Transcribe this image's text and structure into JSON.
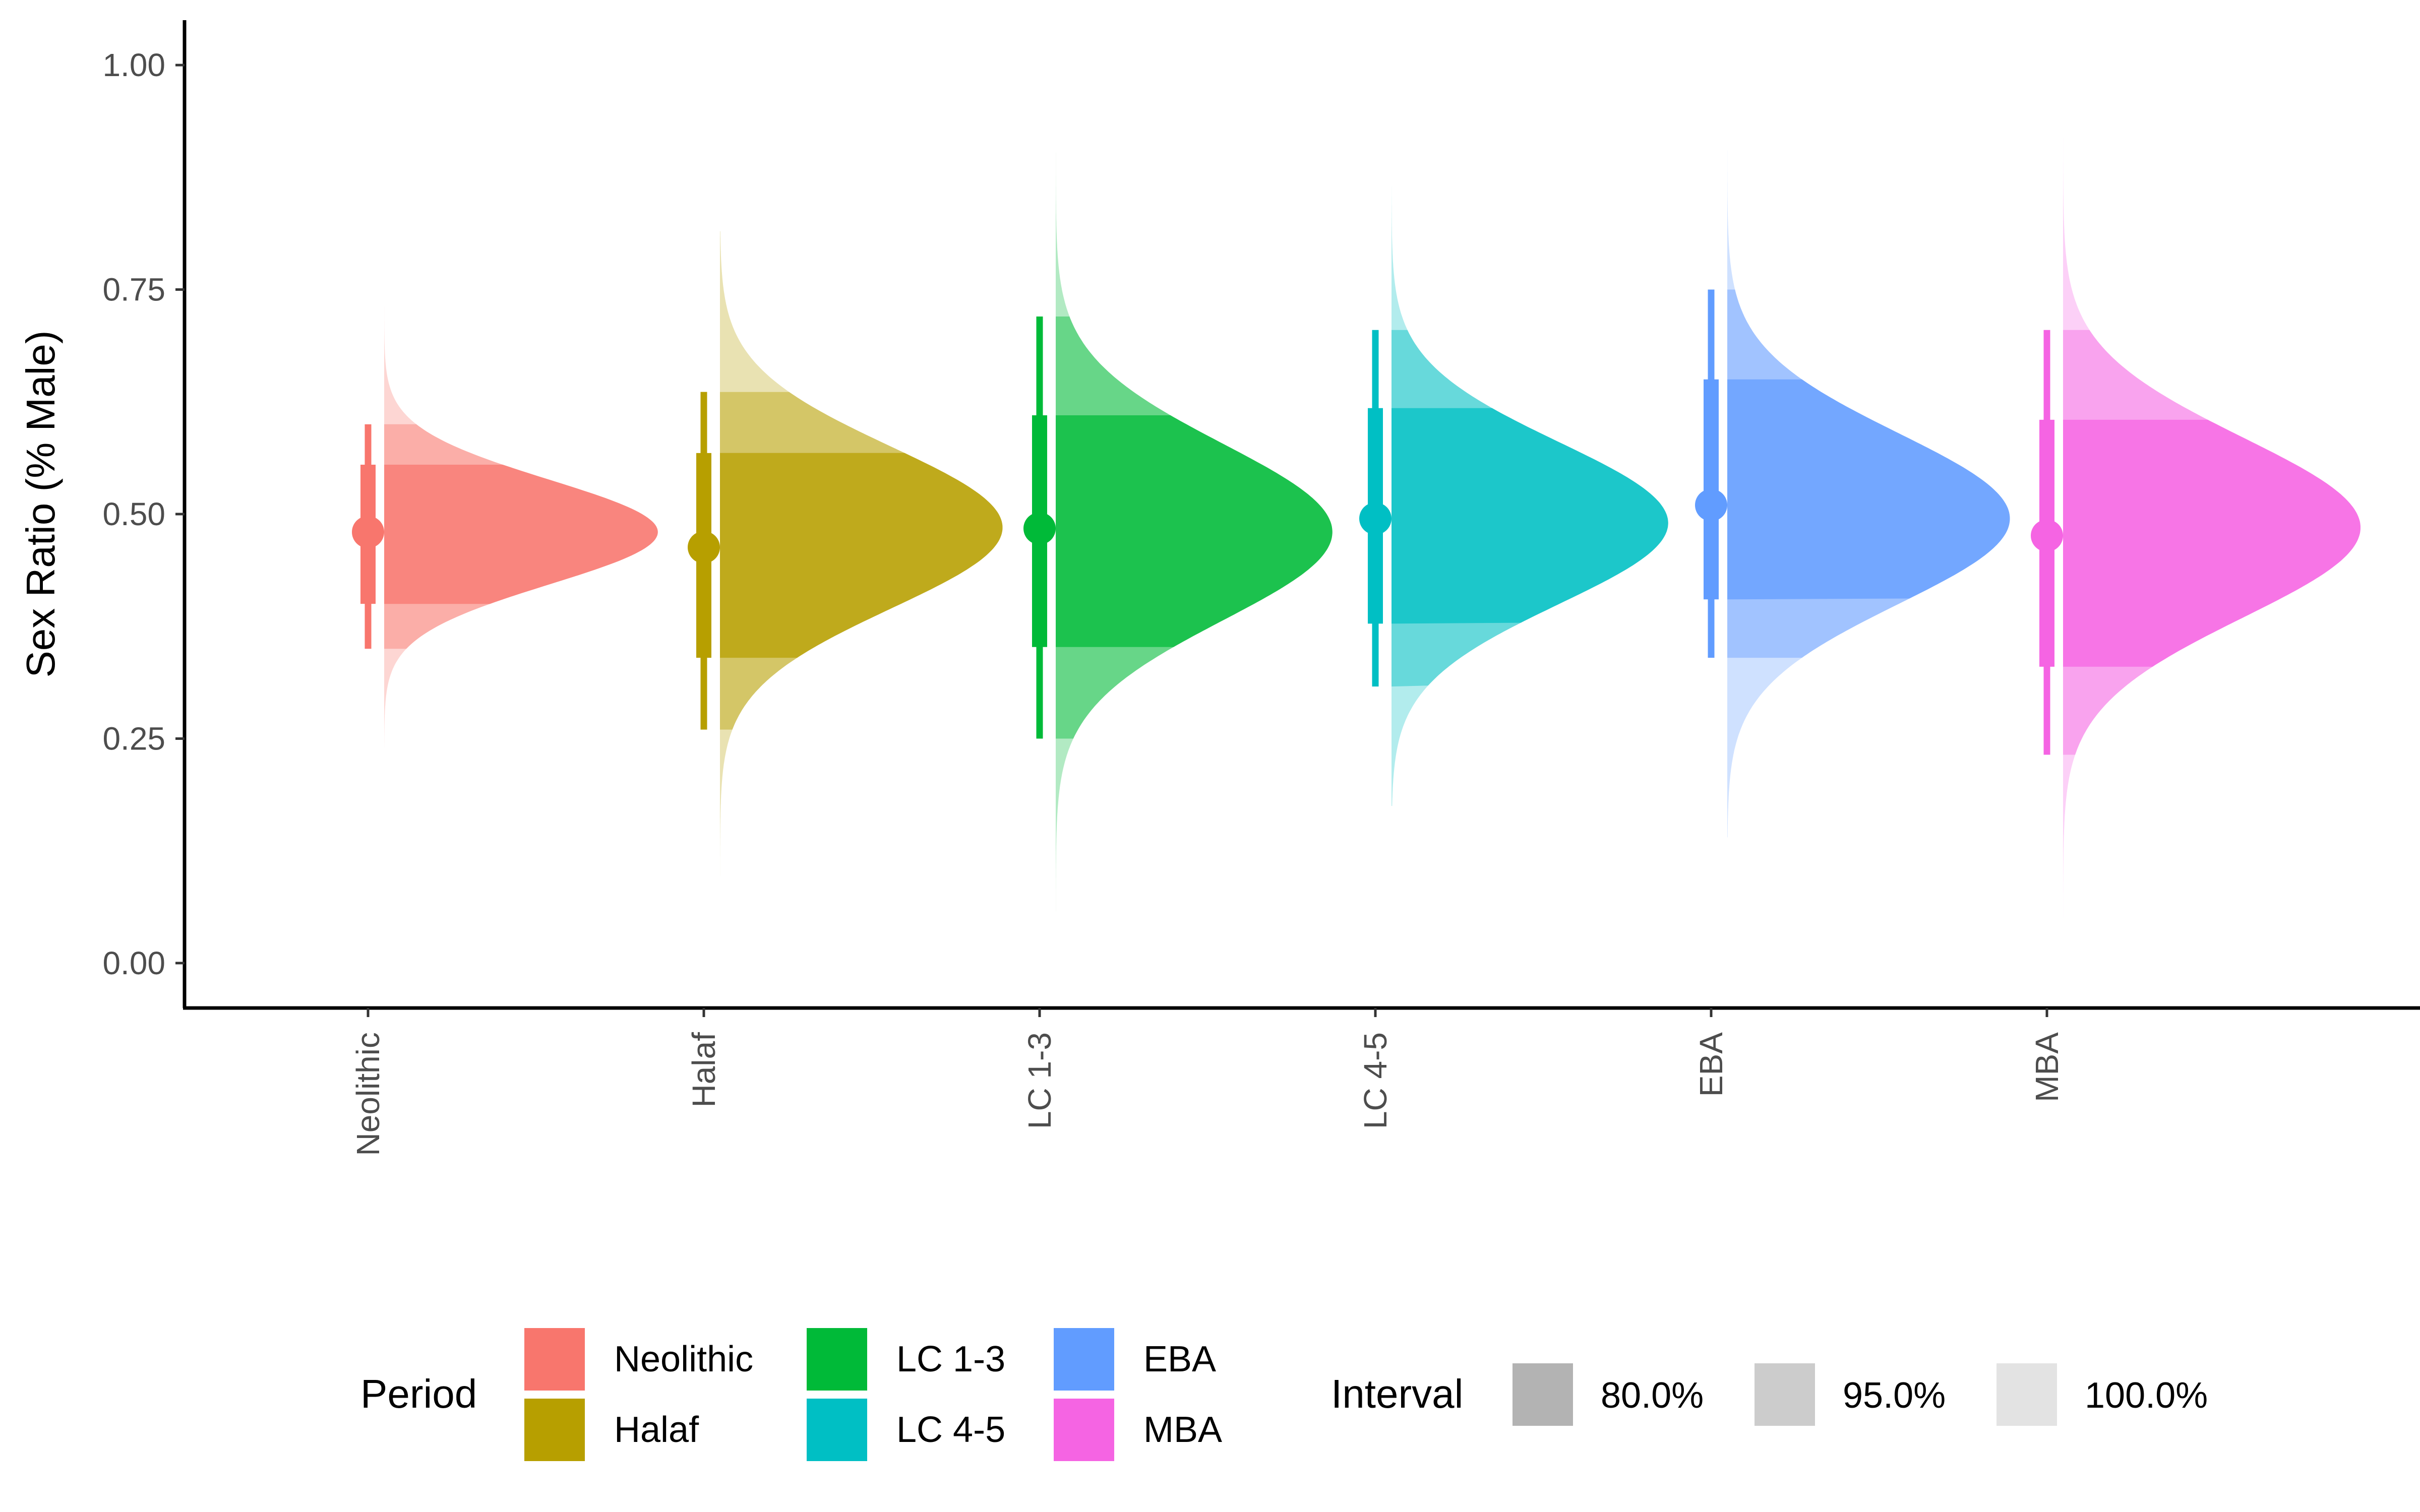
{
  "chart_data": {
    "type": "halfeye",
    "xlabel": "",
    "ylabel": "Sex Ratio (% Male)",
    "ylim": [
      -0.05,
      1.05
    ],
    "y_ticks": [
      "0.00",
      "0.25",
      "0.50",
      "0.75",
      "1.00"
    ],
    "y_tick_values": [
      0,
      0.25,
      0.5,
      0.75,
      1.0
    ],
    "categories": [
      "Neolithic",
      "Halaf",
      "LC 1-3",
      "LC 4-5",
      "EBA",
      "MBA"
    ],
    "series": [
      {
        "name": "Neolithic",
        "color": "#F8766D",
        "median": 0.48,
        "mode": 0.48,
        "sd": 0.058,
        "peak_rel": 0.92,
        "interval_66": [
          0.4,
          0.555
        ],
        "interval_95": [
          0.35,
          0.6
        ],
        "range": [
          0.24,
          0.745
        ],
        "band_80": [
          0.4,
          0.555
        ],
        "band_95": [
          0.35,
          0.6
        ]
      },
      {
        "name": "Halaf",
        "color": "#B79F00",
        "median": 0.463,
        "mode": 0.485,
        "sd": 0.09,
        "peak_rel": 0.95,
        "interval_66": [
          0.34,
          0.568
        ],
        "interval_95": [
          0.26,
          0.636
        ],
        "range": [
          0.08,
          0.815
        ],
        "band_80": [
          0.34,
          0.568
        ],
        "band_95": [
          0.26,
          0.636
        ]
      },
      {
        "name": "LC 1-3",
        "color": "#00BA38",
        "median": 0.484,
        "mode": 0.48,
        "sd": 0.098,
        "peak_rel": 0.93,
        "interval_66": [
          0.352,
          0.61
        ],
        "interval_95": [
          0.25,
          0.72
        ],
        "range": [
          0.05,
          0.97
        ],
        "band_80": [
          0.352,
          0.61
        ],
        "band_95": [
          0.25,
          0.72
        ]
      },
      {
        "name": "LC 4-5",
        "color": "#00BFC4",
        "median": 0.495,
        "mode": 0.49,
        "sd": 0.09,
        "peak_rel": 0.93,
        "interval_66": [
          0.378,
          0.618
        ],
        "interval_95": [
          0.308,
          0.705
        ],
        "range": [
          0.175,
          0.865
        ],
        "band_80": [
          0.378,
          0.618
        ],
        "band_95": [
          0.308,
          0.705
        ]
      },
      {
        "name": "EBA",
        "color": "#619CFF",
        "median": 0.51,
        "mode": 0.495,
        "sd": 0.095,
        "peak_rel": 0.95,
        "interval_66": [
          0.405,
          0.65
        ],
        "interval_95": [
          0.34,
          0.75
        ],
        "range": [
          0.14,
          0.905
        ],
        "band_80": [
          0.405,
          0.65
        ],
        "band_95": [
          0.34,
          0.75
        ]
      },
      {
        "name": "MBA",
        "color": "#F564E3",
        "median": 0.476,
        "mode": 0.485,
        "sd": 0.1,
        "peak_rel": 1.0,
        "interval_66": [
          0.33,
          0.605
        ],
        "interval_95": [
          0.232,
          0.705
        ],
        "range": [
          0.01,
          0.925
        ],
        "band_80": [
          0.33,
          0.605
        ],
        "band_95": [
          0.232,
          0.705
        ]
      }
    ],
    "legend": {
      "position": "bottom",
      "period_title": "Period",
      "interval_title": "Interval",
      "interval_labels": [
        "80.0%",
        "95.0%",
        "100.0%"
      ],
      "interval_shades": [
        "#B3B3B3",
        "#CCCCCC",
        "#E3E3E3"
      ]
    },
    "grid": false
  }
}
